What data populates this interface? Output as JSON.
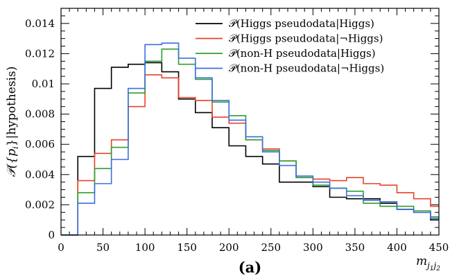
{
  "chart_data": {
    "type": "line",
    "style": "step-histogram",
    "panel_label": "(a)",
    "xlabel": "m_{j1j2}",
    "xlabel_display": {
      "main": "m",
      "sub": "j",
      "subsub1": "1",
      "subsub2": "2"
    },
    "ylabel": "𝒫({p_i}|hypothesis)",
    "ylabel_display": {
      "prefix": "𝒫({",
      "p": "p",
      "sub": "i",
      "suffix": "}|hypothesis)"
    },
    "xlim": [
      0,
      450
    ],
    "ylim": [
      0,
      0.015
    ],
    "xticks": [
      0,
      50,
      100,
      150,
      200,
      250,
      300,
      350,
      400,
      450
    ],
    "xtick_labels": [
      "0",
      "50",
      "100",
      "150",
      "200",
      "250",
      "300",
      "350",
      "400",
      "450"
    ],
    "yticks": [
      0,
      0.002,
      0.004,
      0.006,
      0.008,
      0.01,
      0.012,
      0.014
    ],
    "ytick_labels": [
      "0",
      "0.002",
      "0.004",
      "0.006",
      "0.008",
      "0.01",
      "0.012",
      "0.014"
    ],
    "grid": false,
    "legend_position": "top-right",
    "bin_edges": [
      0,
      20,
      40,
      60,
      80,
      100,
      120,
      140,
      160,
      180,
      200,
      220,
      240,
      260,
      280,
      300,
      320,
      340,
      360,
      380,
      400,
      420,
      440,
      450
    ],
    "series": [
      {
        "name": "𝒫(Higgs pseudodata|Higgs)",
        "color": "#000000",
        "values": [
          0.0,
          0.0052,
          0.0097,
          0.0111,
          0.0113,
          0.0114,
          0.0108,
          0.009,
          0.0081,
          0.0071,
          0.0059,
          0.0052,
          0.0047,
          0.0035,
          0.0035,
          0.0032,
          0.0025,
          0.0024,
          0.0024,
          0.0021,
          0.0017,
          0.0015,
          0.001
        ]
      },
      {
        "name": "𝒫(Higgs pseudodata|¬Higgs)",
        "color": "#e8412a",
        "values": [
          0.0,
          0.0036,
          0.0054,
          0.0063,
          0.0085,
          0.0106,
          0.0104,
          0.0091,
          0.0089,
          0.0078,
          0.0074,
          0.0063,
          0.0057,
          0.0049,
          0.0038,
          0.0037,
          0.0036,
          0.0038,
          0.0034,
          0.0033,
          0.0028,
          0.0024,
          0.0019
        ]
      },
      {
        "name": "𝒫(non-H pseudodata|Higgs)",
        "color": "#2e9e2e",
        "values": [
          0.0,
          0.0028,
          0.0044,
          0.0058,
          0.0094,
          0.0115,
          0.0123,
          0.0113,
          0.0103,
          0.0088,
          0.0079,
          0.0063,
          0.0056,
          0.0049,
          0.0038,
          0.0033,
          0.0031,
          0.0029,
          0.0021,
          0.0019,
          0.0019,
          0.0016,
          0.0012
        ]
      },
      {
        "name": "𝒫(non-H pseudodata|¬Higgs)",
        "color": "#3b6fe0",
        "values": [
          0.0,
          0.0021,
          0.0034,
          0.005,
          0.0097,
          0.0126,
          0.0127,
          0.0117,
          0.0104,
          0.0089,
          0.0076,
          0.0065,
          0.0055,
          0.0046,
          0.0039,
          0.0035,
          0.0031,
          0.0026,
          0.0023,
          0.0022,
          0.0017,
          0.0015,
          0.0011
        ]
      }
    ]
  }
}
